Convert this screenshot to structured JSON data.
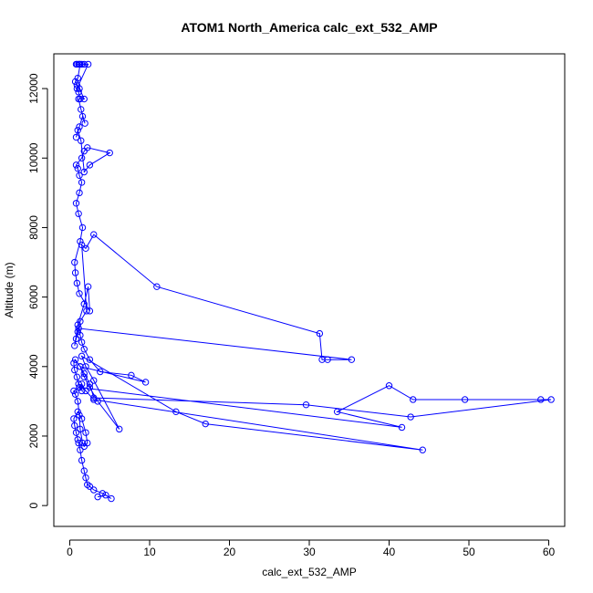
{
  "chart_data": {
    "type": "line",
    "title": "ATOM1 North_America calc_ext_532_AMP",
    "xlabel": "calc_ext_532_AMP",
    "ylabel": "Altitude (m)",
    "xlim": [
      -2,
      62
    ],
    "ylim": [
      -600,
      13000
    ],
    "xticks": [
      0,
      10,
      20,
      30,
      40,
      50,
      60
    ],
    "yticks": [
      0,
      2000,
      4000,
      6000,
      8000,
      10000,
      12000
    ],
    "grid": false,
    "marker": "open-circle",
    "color": "#0000ff",
    "series": [
      {
        "x": [
          3.5,
          4.5,
          5.2,
          4.1,
          3.0,
          2.5,
          2.2,
          2.0,
          1.8,
          1.5,
          1.3,
          1.1,
          1.0,
          0.8,
          0.6,
          0.5,
          1.0,
          1.5,
          2.0,
          2.2,
          1.8,
          1.6,
          1.3,
          1.2,
          1.0,
          0.7,
          0.5,
          1.2,
          1.5,
          1.1,
          0.9,
          0.6,
          0.5,
          0.7,
          1.3,
          1.8,
          2.5,
          3.5,
          6.2,
          3.0,
          2.0,
          1.5,
          13.3,
          17.0,
          44.2,
          3.0,
          2.0,
          1.5,
          1.2,
          41.6,
          33.5,
          40.0,
          43.0,
          49.5,
          59.0,
          60.3,
          42.7,
          29.6,
          3.0,
          2.5,
          1.8,
          1.3,
          9.5,
          7.7,
          3.8,
          2.5,
          1.8,
          1.5,
          1.3,
          1.1,
          35.3,
          32.3,
          31.6,
          31.3,
          10.9,
          3.0,
          2.0,
          1.5,
          2.1,
          1.3,
          1.0,
          0.8,
          0.6,
          1.0,
          1.8,
          2.3,
          2.5,
          1.2,
          0.9,
          0.7,
          0.6,
          1.3,
          1.6,
          1.1,
          0.8,
          1.2,
          1.5,
          1.2,
          1.0,
          0.8,
          1.5,
          1.8,
          2.2,
          5.0,
          2.5,
          1.8,
          1.4,
          1.0,
          0.8,
          1.2,
          1.6,
          1.9,
          1.4,
          1.1,
          1.8,
          1.2,
          0.9,
          0.7,
          1.0,
          1.3,
          1.1,
          0.8,
          0.9,
          1.2,
          1.5,
          1.8,
          2.3,
          0.9,
          1.1,
          1.3
        ],
        "y": [
          250,
          300,
          200,
          350,
          450,
          550,
          600,
          800,
          1000,
          1300,
          1600,
          1800,
          1900,
          2100,
          2300,
          2500,
          2700,
          2500,
          2100,
          1800,
          1700,
          1800,
          2200,
          2600,
          3000,
          3200,
          3300,
          3400,
          3300,
          3500,
          3700,
          3900,
          4100,
          4200,
          4000,
          3700,
          3400,
          3000,
          2200,
          3600,
          4000,
          4300,
          2700,
          2350,
          1600,
          3050,
          3300,
          3500,
          3400,
          2250,
          2700,
          3450,
          3050,
          3050,
          3050,
          3050,
          2550,
          2900,
          3100,
          3500,
          3800,
          4000,
          3550,
          3750,
          3850,
          4200,
          4500,
          4700,
          4900,
          5100,
          4200,
          4200,
          4200,
          4950,
          6300,
          7800,
          7400,
          7500,
          5600,
          5300,
          5000,
          4800,
          4600,
          5200,
          5800,
          6300,
          5600,
          6100,
          6400,
          6700,
          7000,
          7600,
          8000,
          8400,
          8700,
          9000,
          9300,
          9500,
          9700,
          9800,
          10000,
          10200,
          10300,
          10150,
          9800,
          9600,
          10500,
          10800,
          10600,
          10900,
          11200,
          11000,
          11400,
          11700,
          11700,
          12000,
          12100,
          12200,
          12300,
          12700,
          12700,
          12700,
          12700,
          12700,
          12700,
          12700,
          12700,
          12000,
          11900,
          11700
        ]
      }
    ]
  }
}
